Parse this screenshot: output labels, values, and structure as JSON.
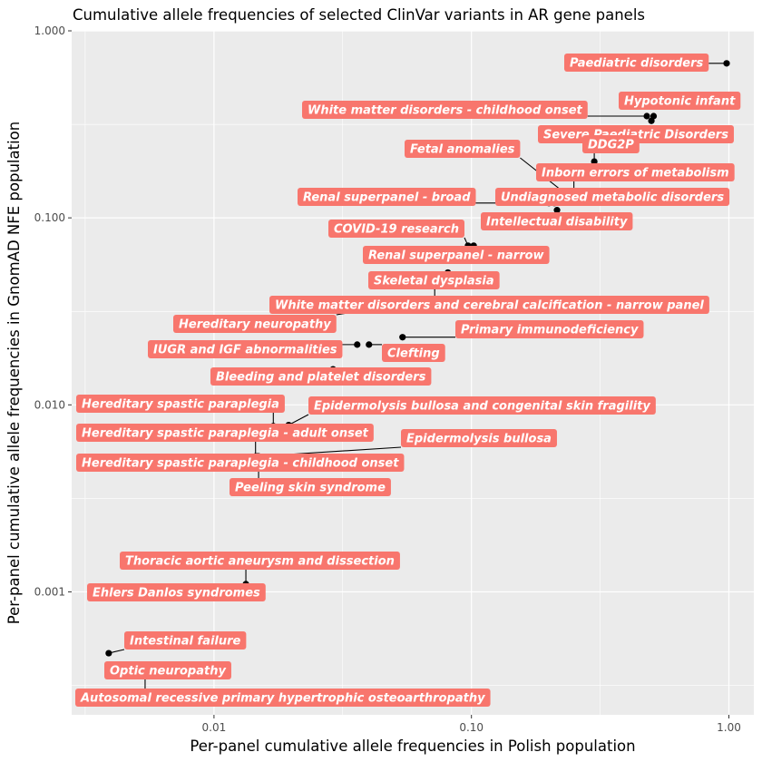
{
  "chart_data": {
    "type": "scatter",
    "title": "Cumulative allele frequencies of selected ClinVar variants in AR gene panels",
    "xlabel": "Per-panel cumulative allele frequencies in Polish population",
    "ylabel": "Per-panel cumulative allele frequencies in GnomAD NFE population",
    "x_scale": "log10",
    "y_scale": "log10",
    "xlim": [
      0.0028,
      1.25
    ],
    "ylim": [
      0.00022,
      1.0
    ],
    "x_ticks": [
      {
        "value": 0.01,
        "label": "0.01"
      },
      {
        "value": 0.1,
        "label": "0.10"
      },
      {
        "value": 1.0,
        "label": "1.00"
      }
    ],
    "y_ticks": [
      {
        "value": 0.001,
        "label": "0.001"
      },
      {
        "value": 0.01,
        "label": "0.010"
      },
      {
        "value": 0.1,
        "label": "0.100"
      },
      {
        "value": 1.0,
        "label": "1.000"
      }
    ],
    "grid": true,
    "label_color": "#f8766d",
    "point_color": "#000000",
    "points": [
      {
        "label": "Paediatric disorders",
        "x": 0.98,
        "y": 0.67
      },
      {
        "label": "Hypotonic infant",
        "x": 0.51,
        "y": 0.35
      },
      {
        "label": "White matter disorders - childhood onset",
        "x": 0.48,
        "y": 0.35
      },
      {
        "label": "Severe Paediatric Disorders",
        "x": 0.5,
        "y": 0.33
      },
      {
        "label": "DDG2P",
        "x": 0.3,
        "y": 0.2
      },
      {
        "label": "Fetal anomalies",
        "x": 0.24,
        "y": 0.13
      },
      {
        "label": "Inborn errors of metabolism",
        "x": 0.25,
        "y": 0.13
      },
      {
        "label": "Renal superpanel - broad",
        "x": 0.2,
        "y": 0.12
      },
      {
        "label": "Undiagnosed metabolic disorders",
        "x": 0.21,
        "y": 0.12
      },
      {
        "label": "Intellectual disability",
        "x": 0.215,
        "y": 0.11
      },
      {
        "label": "COVID-19 research",
        "x": 0.097,
        "y": 0.071
      },
      {
        "label": "Renal superpanel - narrow",
        "x": 0.102,
        "y": 0.071
      },
      {
        "label": "Skeletal dysplasia",
        "x": 0.081,
        "y": 0.051
      },
      {
        "label": "White matter disorders and cerebral calcification - narrow panel",
        "x": 0.072,
        "y": 0.043
      },
      {
        "label": "Hereditary neuropathy",
        "x": 0.066,
        "y": 0.036
      },
      {
        "label": "Primary immunodeficiency",
        "x": 0.054,
        "y": 0.023
      },
      {
        "label": "IUGR and IGF abnormalities",
        "x": 0.036,
        "y": 0.021
      },
      {
        "label": "Clefting",
        "x": 0.04,
        "y": 0.021
      },
      {
        "label": "Bleeding and platelet disorders",
        "x": 0.029,
        "y": 0.0155
      },
      {
        "label": "Hereditary spastic paraplegia",
        "x": 0.017,
        "y": 0.0077
      },
      {
        "label": "Epidermolysis bullosa and congenital skin fragility",
        "x": 0.0195,
        "y": 0.0078
      },
      {
        "label": "Hereditary spastic paraplegia - adult onset",
        "x": 0.0145,
        "y": 0.0053
      },
      {
        "label": "Epidermolysis bullosa",
        "x": 0.0147,
        "y": 0.0053
      },
      {
        "label": "Hereditary spastic paraplegia - childhood onset",
        "x": 0.0148,
        "y": 0.0053
      },
      {
        "label": "Peeling skin syndrome",
        "x": 0.0149,
        "y": 0.0053
      },
      {
        "label": "Thoracic aortic aneurysm and dissection",
        "x": 0.0133,
        "y": 0.0011
      },
      {
        "label": "Ehlers Danlos syndromes",
        "x": 0.0058,
        "y": 0.00105
      },
      {
        "label": "Intestinal failure",
        "x": 0.0039,
        "y": 0.00047
      },
      {
        "label": "Optic neuropathy",
        "x": 0.0054,
        "y": 0.00027
      },
      {
        "label": "Autosomal recessive primary hypertrophic osteoarthropathy",
        "x": 0.0032,
        "y": 0.00027
      }
    ]
  }
}
